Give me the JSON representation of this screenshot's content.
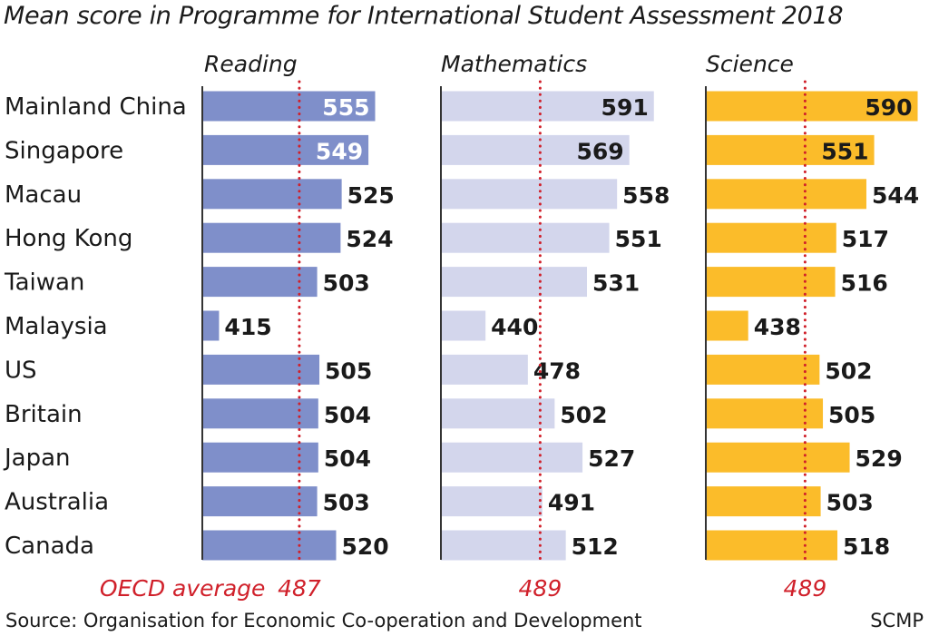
{
  "title": "Mean score in Programme for International Student Assessment 2018",
  "source": "Source: Organisation for Economic Co-operation and Development",
  "brand": "SCMP",
  "chart_data": {
    "type": "bar",
    "orientation": "horizontal",
    "categories": [
      "Mainland China",
      "Singapore",
      "Macau",
      "Hong Kong",
      "Taiwan",
      "Malaysia",
      "US",
      "Britain",
      "Japan",
      "Australia",
      "Canada"
    ],
    "xlim": [
      400,
      600
    ],
    "series": [
      {
        "name": "Reading",
        "color": "#7f8fca",
        "values": [
          555,
          549,
          525,
          524,
          503,
          415,
          505,
          504,
          504,
          503,
          520
        ],
        "reference": {
          "label": "OECD average",
          "value": 487
        }
      },
      {
        "name": "Mathematics",
        "color": "#d3d6ec",
        "values": [
          591,
          569,
          558,
          551,
          531,
          440,
          478,
          502,
          527,
          491,
          512
        ],
        "reference": {
          "label": "",
          "value": 489
        }
      },
      {
        "name": "Science",
        "color": "#fbbc2a",
        "values": [
          590,
          551,
          544,
          517,
          516,
          438,
          502,
          505,
          529,
          503,
          518
        ],
        "reference": {
          "label": "",
          "value": 489
        }
      }
    ],
    "reference_color": "#d0202a"
  }
}
